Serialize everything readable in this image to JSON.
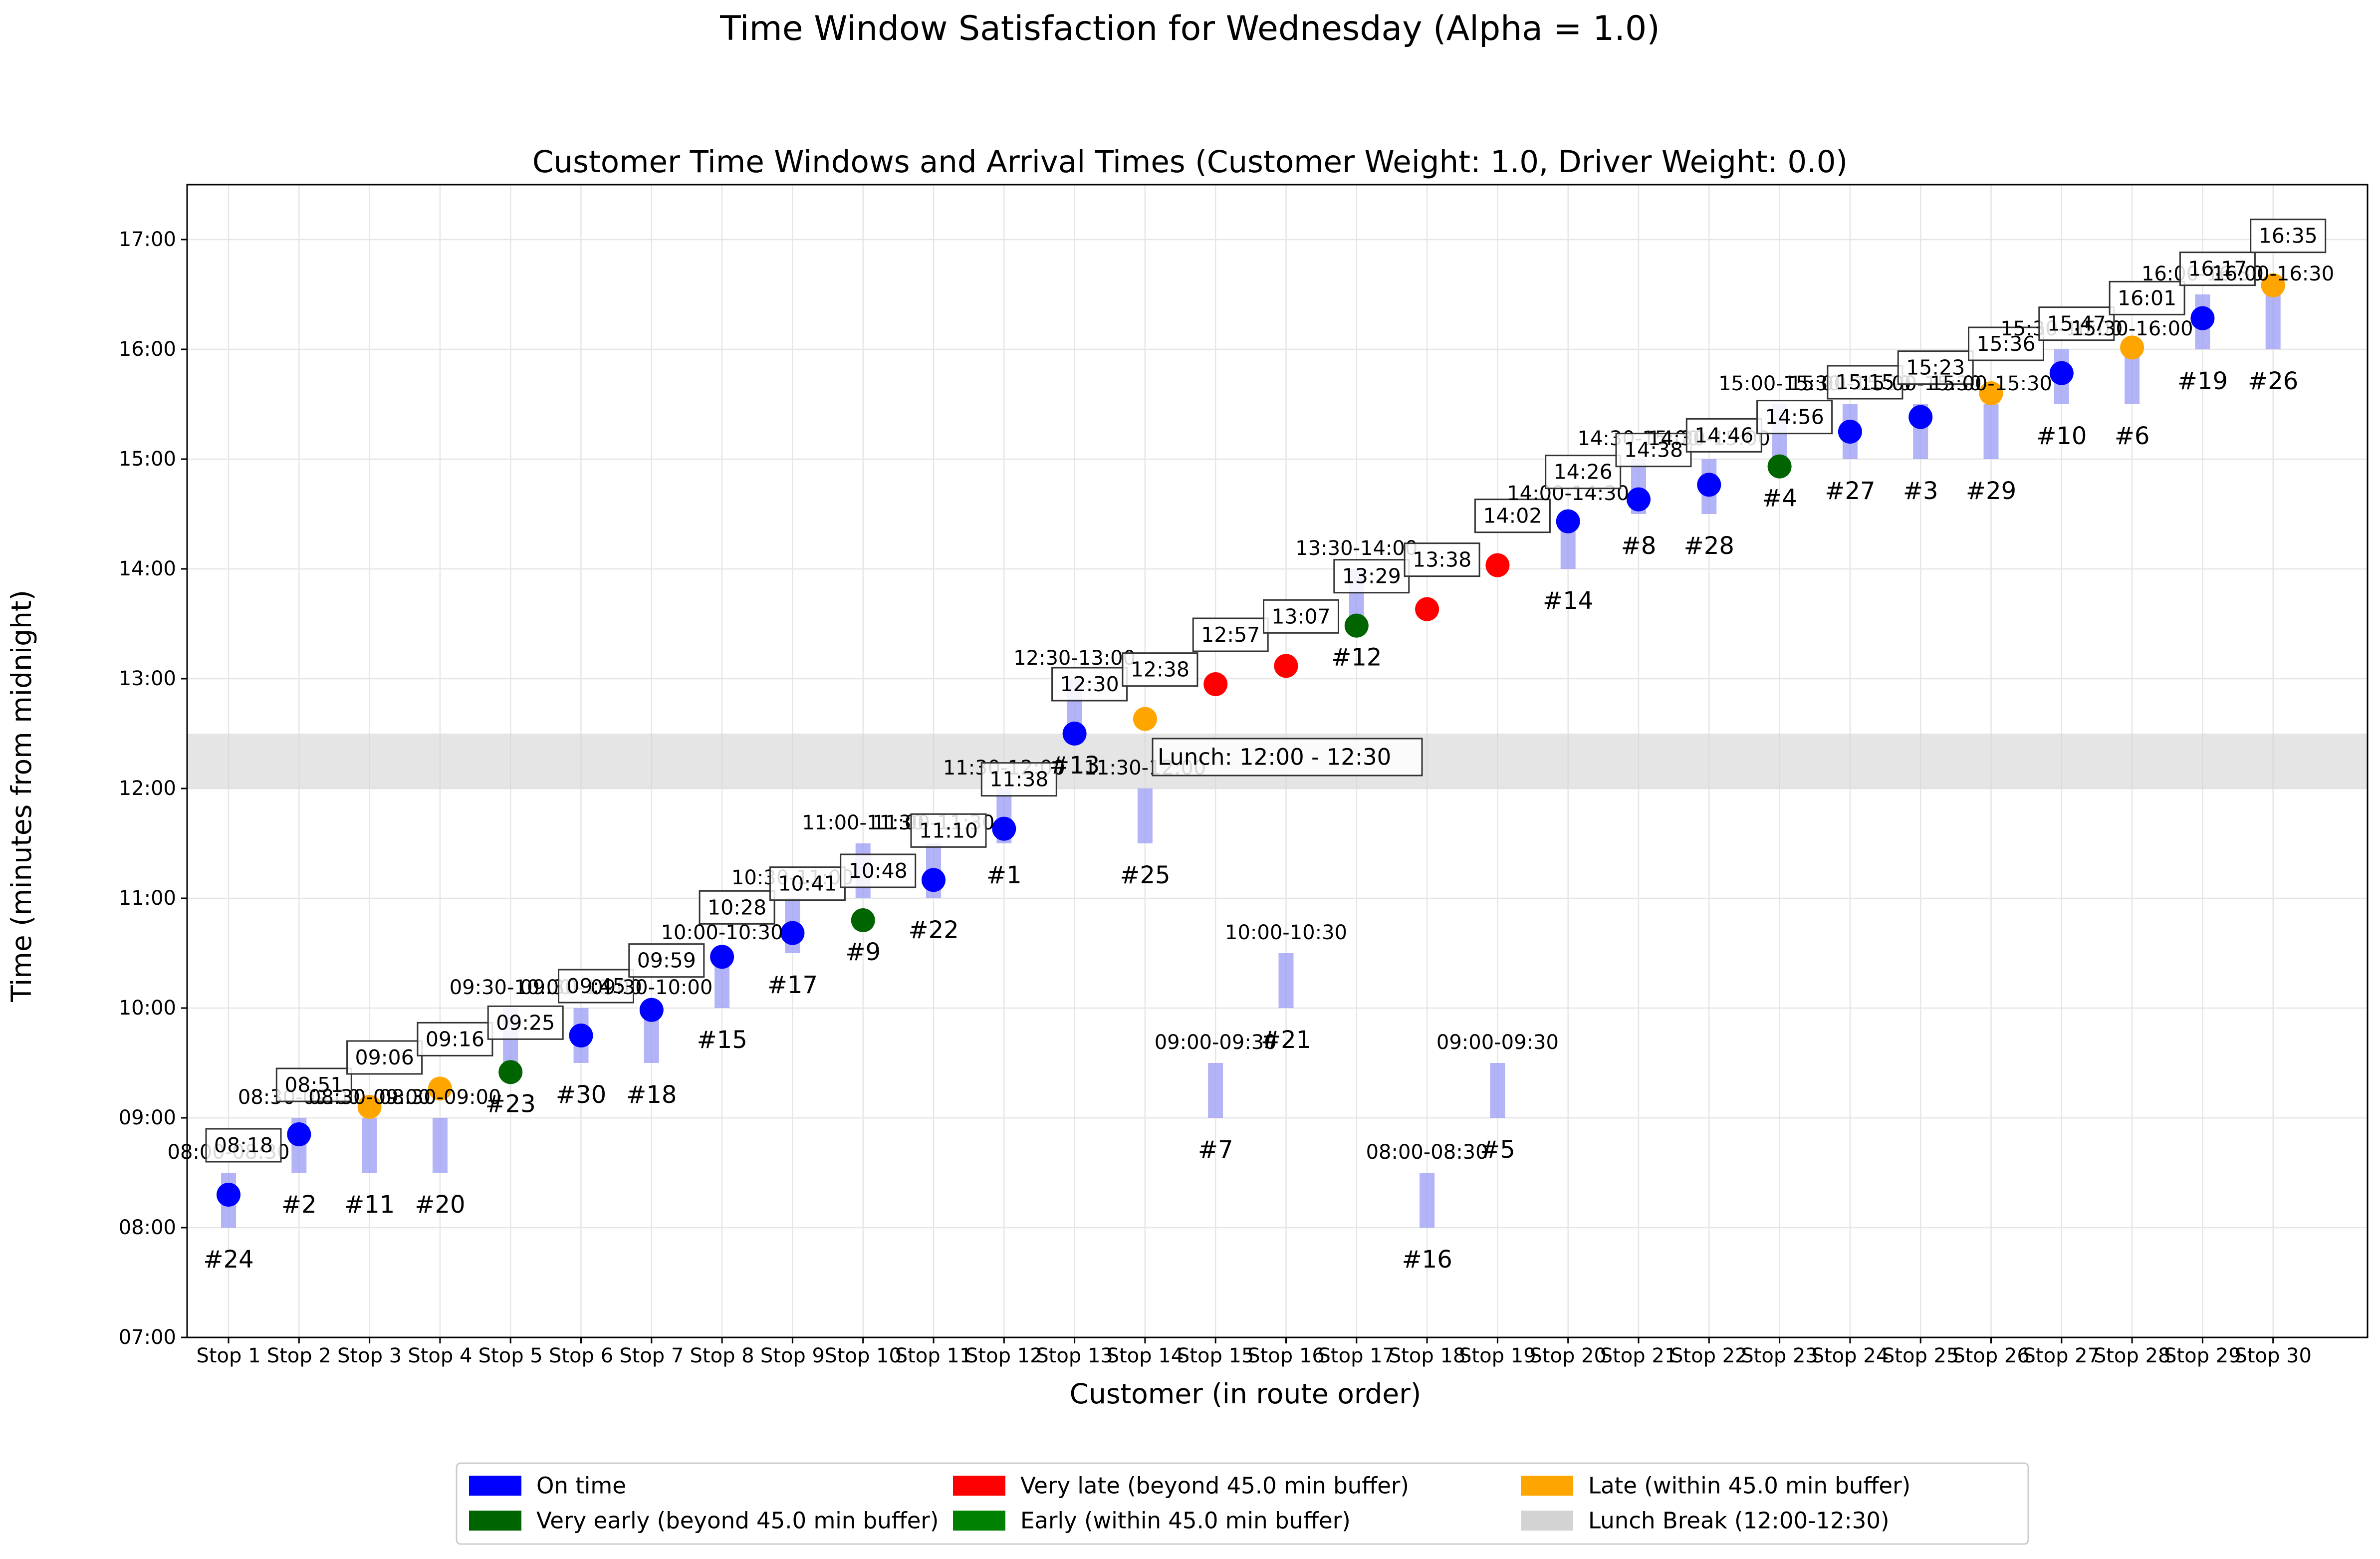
{
  "chart_data": {
    "type": "scatter",
    "suptitle": "Time Window Satisfaction for Wednesday (Alpha = 1.0)",
    "title": "Customer Time Windows and Arrival Times (Customer Weight: 1.0, Driver Weight: 0.0)",
    "xlabel": "Customer (in route order)",
    "ylabel": "Time (minutes from midnight)",
    "ylim": [
      420,
      1050
    ],
    "yticks": [
      420,
      480,
      540,
      600,
      660,
      720,
      780,
      840,
      900,
      960,
      1020
    ],
    "ytick_labels": [
      "07:00",
      "08:00",
      "09:00",
      "10:00",
      "11:00",
      "12:00",
      "13:00",
      "14:00",
      "15:00",
      "16:00",
      "17:00"
    ],
    "grid": true,
    "lunch": {
      "start": 720,
      "end": 750,
      "label": "Lunch: 12:00 - 12:30"
    },
    "colors": {
      "on_time": "#0000ff",
      "very_early": "#006400",
      "early": "#008000",
      "late": "#ffa500",
      "very_late": "#ff0000",
      "window": "#9a9af5",
      "lunch": "#d3d3d3"
    },
    "stops": [
      {
        "stop": "Stop 1",
        "customer": "#24",
        "window": "08:00-08:30",
        "w_start": 480,
        "w_end": 510,
        "arrival": 498,
        "arrival_label": "08:18",
        "status": "on_time"
      },
      {
        "stop": "Stop 2",
        "customer": "#2",
        "window": "08:30-09:00",
        "w_start": 510,
        "w_end": 540,
        "arrival": 531,
        "arrival_label": "08:51",
        "status": "on_time"
      },
      {
        "stop": "Stop 3",
        "customer": "#11",
        "window": "08:30-09:00",
        "w_start": 510,
        "w_end": 540,
        "arrival": 546,
        "arrival_label": "09:06",
        "status": "late"
      },
      {
        "stop": "Stop 4",
        "customer": "#20",
        "window": "08:30-09:00",
        "w_start": 510,
        "w_end": 540,
        "arrival": 556,
        "arrival_label": "09:16",
        "status": "late"
      },
      {
        "stop": "Stop 5",
        "customer": "#23",
        "window": "09:30-10:00",
        "w_start": 570,
        "w_end": 600,
        "arrival": 565,
        "arrival_label": "09:25",
        "status": "very_early"
      },
      {
        "stop": "Stop 6",
        "customer": "#30",
        "window": "09:30-10:00",
        "w_start": 570,
        "w_end": 600,
        "arrival": 585,
        "arrival_label": "09:45",
        "status": "on_time"
      },
      {
        "stop": "Stop 7",
        "customer": "#18",
        "window": "09:30-10:00",
        "w_start": 570,
        "w_end": 600,
        "arrival": 599,
        "arrival_label": "09:59",
        "status": "on_time"
      },
      {
        "stop": "Stop 8",
        "customer": "#15",
        "window": "10:00-10:30",
        "w_start": 600,
        "w_end": 630,
        "arrival": 628,
        "arrival_label": "10:28",
        "status": "on_time"
      },
      {
        "stop": "Stop 9",
        "customer": "#17",
        "window": "10:30-11:00",
        "w_start": 630,
        "w_end": 660,
        "arrival": 641,
        "arrival_label": "10:41",
        "status": "on_time"
      },
      {
        "stop": "Stop 10",
        "customer": "#9",
        "window": "11:00-11:30",
        "w_start": 660,
        "w_end": 690,
        "arrival": 648,
        "arrival_label": "10:48",
        "status": "very_early"
      },
      {
        "stop": "Stop 11",
        "customer": "#22",
        "window": "11:00-11:30",
        "w_start": 660,
        "w_end": 690,
        "arrival": 670,
        "arrival_label": "11:10",
        "status": "on_time"
      },
      {
        "stop": "Stop 12",
        "customer": "#1",
        "window": "11:30-12:00",
        "w_start": 690,
        "w_end": 720,
        "arrival": 698,
        "arrival_label": "11:38",
        "status": "on_time"
      },
      {
        "stop": "Stop 13",
        "customer": "#13",
        "window": "12:30-13:00",
        "w_start": 750,
        "w_end": 780,
        "arrival": 750,
        "arrival_label": "12:30",
        "status": "on_time"
      },
      {
        "stop": "Stop 14",
        "customer": "#25",
        "window": "11:30-12:00",
        "w_start": 690,
        "w_end": 720,
        "arrival": 758,
        "arrival_label": "12:38",
        "status": "late"
      },
      {
        "stop": "Stop 15",
        "customer": "#7",
        "window": "09:00-09:30",
        "w_start": 540,
        "w_end": 570,
        "arrival": 777,
        "arrival_label": "12:57",
        "status": "very_late"
      },
      {
        "stop": "Stop 16",
        "customer": "#21",
        "window": "10:00-10:30",
        "w_start": 600,
        "w_end": 630,
        "arrival": 787,
        "arrival_label": "13:07",
        "status": "very_late"
      },
      {
        "stop": "Stop 17",
        "customer": "#12",
        "window": "13:30-14:00",
        "w_start": 810,
        "w_end": 840,
        "arrival": 809,
        "arrival_label": "13:29",
        "status": "very_early"
      },
      {
        "stop": "Stop 18",
        "customer": "#16",
        "window": "08:00-08:30",
        "w_start": 480,
        "w_end": 510,
        "arrival": 818,
        "arrival_label": "13:38",
        "status": "very_late"
      },
      {
        "stop": "Stop 19",
        "customer": "#5",
        "window": "09:00-09:30",
        "w_start": 540,
        "w_end": 570,
        "arrival": 842,
        "arrival_label": "14:02",
        "status": "very_late"
      },
      {
        "stop": "Stop 20",
        "customer": "#14",
        "window": "14:00-14:30",
        "w_start": 840,
        "w_end": 870,
        "arrival": 866,
        "arrival_label": "14:26",
        "status": "on_time"
      },
      {
        "stop": "Stop 21",
        "customer": "#8",
        "window": "14:30-15:00",
        "w_start": 870,
        "w_end": 900,
        "arrival": 878,
        "arrival_label": "14:38",
        "status": "on_time"
      },
      {
        "stop": "Stop 22",
        "customer": "#28",
        "window": "14:30-15:00",
        "w_start": 870,
        "w_end": 900,
        "arrival": 886,
        "arrival_label": "14:46",
        "status": "on_time"
      },
      {
        "stop": "Stop 23",
        "customer": "#4",
        "window": "15:00-15:30",
        "w_start": 900,
        "w_end": 930,
        "arrival": 896,
        "arrival_label": "14:56",
        "status": "very_early"
      },
      {
        "stop": "Stop 24",
        "customer": "#27",
        "window": "15:00-15:30",
        "w_start": 900,
        "w_end": 930,
        "arrival": 915,
        "arrival_label": "15:15",
        "status": "on_time"
      },
      {
        "stop": "Stop 25",
        "customer": "#3",
        "window": "15:00-15:30",
        "w_start": 900,
        "w_end": 930,
        "arrival": 923,
        "arrival_label": "15:23",
        "status": "on_time"
      },
      {
        "stop": "Stop 26",
        "customer": "#29",
        "window": "15:00-15:30",
        "w_start": 900,
        "w_end": 930,
        "arrival": 936,
        "arrival_label": "15:36",
        "status": "late"
      },
      {
        "stop": "Stop 27",
        "customer": "#10",
        "window": "15:30-16:00",
        "w_start": 930,
        "w_end": 960,
        "arrival": 947,
        "arrival_label": "15:47",
        "status": "on_time"
      },
      {
        "stop": "Stop 28",
        "customer": "#6",
        "window": "15:30-16:00",
        "w_start": 930,
        "w_end": 960,
        "arrival": 961,
        "arrival_label": "16:01",
        "status": "late"
      },
      {
        "stop": "Stop 29",
        "customer": "#19",
        "window": "16:00-16:30",
        "w_start": 960,
        "w_end": 990,
        "arrival": 977,
        "arrival_label": "16:17",
        "status": "on_time"
      },
      {
        "stop": "Stop 30",
        "customer": "#26",
        "window": "16:00-16:30",
        "w_start": 960,
        "w_end": 990,
        "arrival": 995,
        "arrival_label": "16:35",
        "status": "late"
      }
    ],
    "legend": [
      {
        "label": "On time",
        "color": "#0000ff"
      },
      {
        "label": "Very early (beyond 45.0 min buffer)",
        "color": "#006400"
      },
      {
        "label": "Very late (beyond 45.0 min buffer)",
        "color": "#ff0000"
      },
      {
        "label": "Early (within 45.0 min buffer)",
        "color": "#008000"
      },
      {
        "label": "Late (within 45.0 min buffer)",
        "color": "#ffa500"
      },
      {
        "label": "Lunch Break (12:00-12:30)",
        "color": "#d3d3d3"
      }
    ],
    "legend_position": "bottom-center"
  }
}
